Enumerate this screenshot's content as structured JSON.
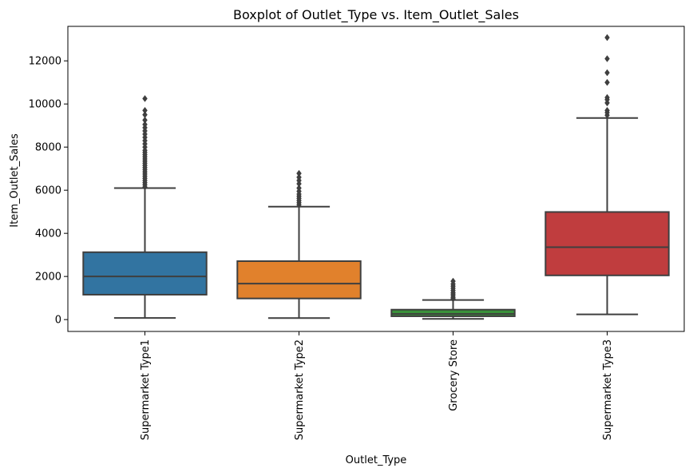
{
  "chart_data": {
    "type": "boxplot",
    "title": "Boxplot of Outlet_Type vs. Item_Outlet_Sales",
    "xlabel": "Outlet_Type",
    "ylabel": "Item_Outlet_Sales",
    "ylim": [
      -550,
      13600
    ],
    "yticks": [
      0,
      2000,
      4000,
      6000,
      8000,
      10000,
      12000
    ],
    "grid": false,
    "categories": [
      "Supermarket Type1",
      "Supermarket Type2",
      "Grocery Store",
      "Supermarket Type3"
    ],
    "boxes": [
      {
        "category": "Supermarket Type1",
        "color": "#3274a1",
        "whisker_low": 75,
        "q1": 1155,
        "median": 2000,
        "q3": 3125,
        "whisker_high": 6100,
        "outliers": [
          6150,
          6250,
          6350,
          6450,
          6550,
          6650,
          6750,
          6850,
          6950,
          7050,
          7150,
          7250,
          7350,
          7450,
          7550,
          7650,
          7750,
          7850,
          8000,
          8150,
          8300,
          8450,
          8600,
          8750,
          8900,
          9050,
          9250,
          9500,
          9700,
          10250
        ]
      },
      {
        "category": "Supermarket Type2",
        "color": "#e1812c",
        "whisker_low": 70,
        "q1": 980,
        "median": 1670,
        "q3": 2710,
        "whisker_high": 5240,
        "outliers": [
          5320,
          5420,
          5520,
          5620,
          5720,
          5820,
          5950,
          6100,
          6300,
          6450,
          6600,
          6780
        ]
      },
      {
        "category": "Grocery Store",
        "color": "#3a923a",
        "whisker_low": 35,
        "q1": 155,
        "median": 260,
        "q3": 460,
        "whisker_high": 910,
        "outliers": [
          960,
          1020,
          1100,
          1180,
          1250,
          1350,
          1450,
          1550,
          1650,
          1780
        ]
      },
      {
        "category": "Supermarket Type3",
        "color": "#c03d3e",
        "whisker_low": 240,
        "q1": 2050,
        "median": 3360,
        "q3": 4990,
        "whisker_high": 9350,
        "outliers": [
          9480,
          9600,
          9700,
          10050,
          10200,
          10300,
          11000,
          11450,
          12100,
          13080
        ]
      }
    ]
  }
}
